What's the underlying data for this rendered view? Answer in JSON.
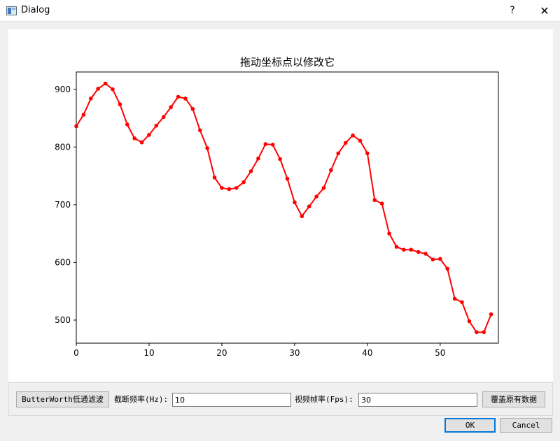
{
  "window": {
    "title": "Dialog",
    "help_glyph": "?",
    "close_glyph": "✕"
  },
  "chart_data": {
    "type": "line",
    "title": "拖动坐标点以修改它",
    "xlabel": "",
    "ylabel": "",
    "xlim": [
      0,
      58
    ],
    "ylim": [
      460,
      930
    ],
    "xticks": [
      0,
      10,
      20,
      30,
      40,
      50
    ],
    "yticks": [
      500,
      600,
      700,
      800,
      900
    ],
    "grid": false,
    "color": "#ff0000",
    "x": [
      0,
      1,
      2,
      3,
      4,
      5,
      6,
      7,
      8,
      9,
      10,
      11,
      12,
      13,
      14,
      15,
      16,
      17,
      18,
      19,
      20,
      21,
      22,
      23,
      24,
      25,
      26,
      27,
      28,
      29,
      30,
      31,
      32,
      33,
      34,
      35,
      36,
      37,
      38,
      39,
      40,
      41,
      42,
      43,
      44,
      45,
      46,
      47,
      48,
      49,
      50,
      51,
      52,
      53,
      54,
      55,
      56,
      57
    ],
    "y": [
      836,
      856,
      884,
      901,
      910,
      900,
      874,
      839,
      815,
      808,
      821,
      837,
      852,
      869,
      887,
      884,
      866,
      829,
      798,
      747,
      729,
      727,
      729,
      739,
      758,
      780,
      805,
      804,
      779,
      745,
      704,
      680,
      697,
      714,
      729,
      760,
      789,
      807,
      820,
      811,
      789,
      708,
      702,
      650,
      627,
      622,
      622,
      618,
      615,
      605,
      606,
      589,
      537,
      531,
      498,
      479,
      479,
      510
    ]
  },
  "controls": {
    "filter_button": "ButterWorth低通滤波",
    "cutoff_label": "截断频率(Hz):",
    "cutoff_value": "10",
    "fps_label": "视频帧率(Fps):",
    "fps_value": "30",
    "overwrite_button": "覆盖原有数据"
  },
  "footer": {
    "ok": "OK",
    "cancel": "Cancel"
  }
}
